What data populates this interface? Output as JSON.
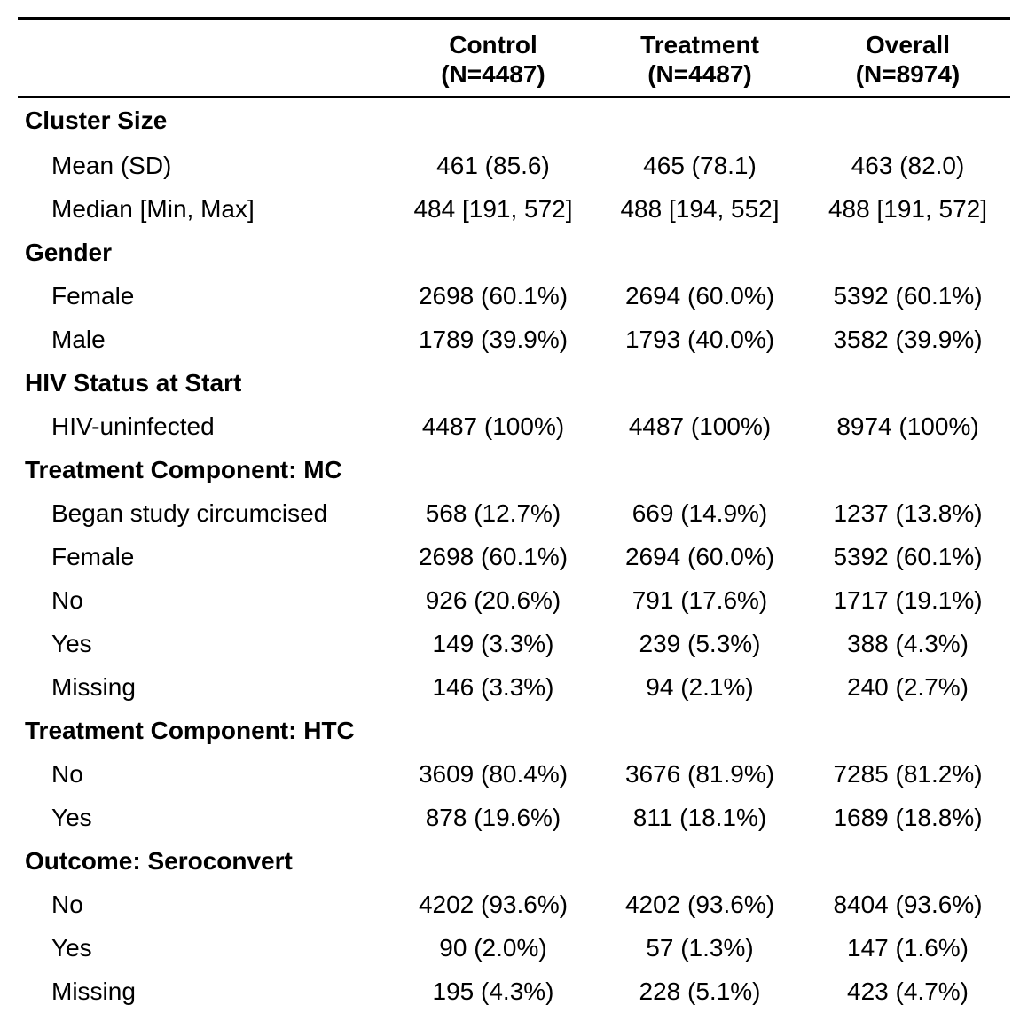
{
  "header": {
    "columns": [
      {
        "title": "Control",
        "subtitle": "(N=4487)"
      },
      {
        "title": "Treatment",
        "subtitle": "(N=4487)"
      },
      {
        "title": "Overall",
        "subtitle": "(N=8974)"
      }
    ]
  },
  "groups": [
    {
      "label": "Cluster Size",
      "rows": [
        {
          "label": "Mean (SD)",
          "values": [
            "461 (85.6)",
            "465 (78.1)",
            "463 (82.0)"
          ]
        },
        {
          "label": "Median [Min, Max]",
          "values": [
            "484 [191, 572]",
            "488 [194, 552]",
            "488 [191, 572]"
          ]
        }
      ]
    },
    {
      "label": "Gender",
      "rows": [
        {
          "label": "Female",
          "values": [
            "2698 (60.1%)",
            "2694 (60.0%)",
            "5392 (60.1%)"
          ]
        },
        {
          "label": "Male",
          "values": [
            "1789 (39.9%)",
            "1793 (40.0%)",
            "3582 (39.9%)"
          ]
        }
      ]
    },
    {
      "label": "HIV Status at Start",
      "rows": [
        {
          "label": "HIV-uninfected",
          "values": [
            "4487 (100%)",
            "4487 (100%)",
            "8974 (100%)"
          ]
        }
      ]
    },
    {
      "label": "Treatment Component: MC",
      "rows": [
        {
          "label": "Began study circumcised",
          "values": [
            "568 (12.7%)",
            "669 (14.9%)",
            "1237 (13.8%)"
          ]
        },
        {
          "label": "Female",
          "values": [
            "2698 (60.1%)",
            "2694 (60.0%)",
            "5392 (60.1%)"
          ]
        },
        {
          "label": "No",
          "values": [
            "926 (20.6%)",
            "791 (17.6%)",
            "1717 (19.1%)"
          ]
        },
        {
          "label": "Yes",
          "values": [
            "149 (3.3%)",
            "239 (5.3%)",
            "388 (4.3%)"
          ]
        },
        {
          "label": "Missing",
          "values": [
            "146 (3.3%)",
            "94 (2.1%)",
            "240 (2.7%)"
          ]
        }
      ]
    },
    {
      "label": "Treatment Component: HTC",
      "rows": [
        {
          "label": "No",
          "values": [
            "3609 (80.4%)",
            "3676 (81.9%)",
            "7285 (81.2%)"
          ]
        },
        {
          "label": "Yes",
          "values": [
            "878 (19.6%)",
            "811 (18.1%)",
            "1689 (18.8%)"
          ]
        }
      ]
    },
    {
      "label": "Outcome: Seroconvert",
      "rows": [
        {
          "label": "No",
          "values": [
            "4202 (93.6%)",
            "4202 (93.6%)",
            "8404 (93.6%)"
          ]
        },
        {
          "label": "Yes",
          "values": [
            "90 (2.0%)",
            "57 (1.3%)",
            "147 (1.6%)"
          ]
        },
        {
          "label": "Missing",
          "values": [
            "195 (4.3%)",
            "228 (5.1%)",
            "423 (4.7%)"
          ]
        }
      ]
    }
  ]
}
